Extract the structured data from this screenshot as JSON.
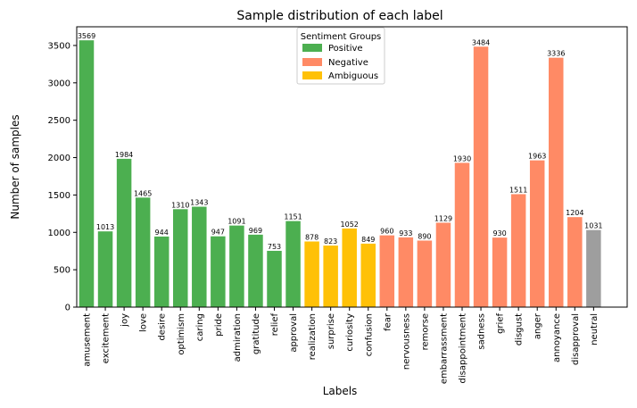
{
  "chart_data": {
    "type": "bar",
    "title": "Sample distribution of each label",
    "xlabel": "Labels",
    "ylabel": "Number of samples",
    "ylim": [
      0,
      3750
    ],
    "yticks": [
      0,
      500,
      1000,
      1500,
      2000,
      2500,
      3000,
      3500
    ],
    "grid": false,
    "legend": {
      "title": "Sentiment Groups",
      "placement": "top-center",
      "entries": [
        {
          "name": "Positive",
          "color": "#4caf50"
        },
        {
          "name": "Negative",
          "color": "#ff8a65"
        },
        {
          "name": "Ambiguous",
          "color": "#ffc107"
        }
      ]
    },
    "group_colors": {
      "Positive": "#4caf50",
      "Negative": "#ff8a65",
      "Ambiguous": "#ffc107",
      "Neutral": "#9e9e9e"
    },
    "categories": [
      "amusement",
      "excitement",
      "joy",
      "love",
      "desire",
      "optimism",
      "caring",
      "pride",
      "admiration",
      "gratitude",
      "relief",
      "approval",
      "realization",
      "surprise",
      "curiosity",
      "confusion",
      "fear",
      "nervousness",
      "remorse",
      "embarrassment",
      "disappointment",
      "sadness",
      "grief",
      "disgust",
      "anger",
      "annoyance",
      "disapproval",
      "neutral"
    ],
    "values": [
      3569,
      1013,
      1984,
      1465,
      944,
      1310,
      1343,
      947,
      1091,
      969,
      753,
      1151,
      878,
      823,
      1052,
      849,
      960,
      933,
      890,
      1129,
      1930,
      3484,
      930,
      1511,
      1963,
      3336,
      1204,
      1031
    ],
    "groups": [
      "Positive",
      "Positive",
      "Positive",
      "Positive",
      "Positive",
      "Positive",
      "Positive",
      "Positive",
      "Positive",
      "Positive",
      "Positive",
      "Positive",
      "Ambiguous",
      "Ambiguous",
      "Ambiguous",
      "Ambiguous",
      "Negative",
      "Negative",
      "Negative",
      "Negative",
      "Negative",
      "Negative",
      "Negative",
      "Negative",
      "Negative",
      "Negative",
      "Negative",
      "Neutral"
    ]
  }
}
